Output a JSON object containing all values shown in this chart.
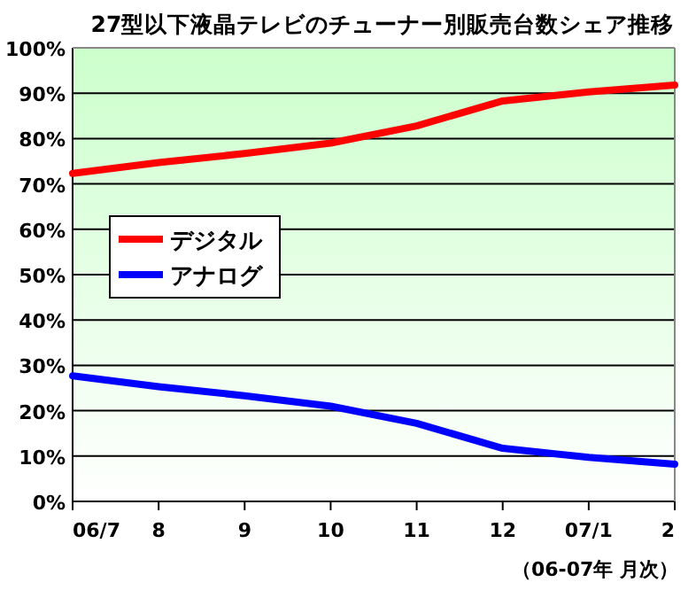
{
  "chart_data": {
    "type": "line",
    "title": "27型以下液晶テレビのチューナー別販売台数シェア推移",
    "categories": [
      "06/7",
      "8",
      "9",
      "10",
      "11",
      "12",
      "07/1",
      "2"
    ],
    "series": [
      {
        "name": "デジタル",
        "color": "#ff0000",
        "values": [
          72.3,
          74.7,
          76.7,
          79.0,
          82.8,
          88.3,
          90.3,
          91.8
        ]
      },
      {
        "name": "アナログ",
        "color": "#0000ff",
        "values": [
          27.7,
          25.3,
          23.3,
          21.0,
          17.2,
          11.7,
          9.7,
          8.2
        ]
      }
    ],
    "ylim": [
      0,
      100
    ],
    "yticks": [
      {
        "value": 0,
        "label": "0%"
      },
      {
        "value": 10,
        "label": "10%"
      },
      {
        "value": 20,
        "label": "20%"
      },
      {
        "value": 30,
        "label": "30%"
      },
      {
        "value": 40,
        "label": "40%"
      },
      {
        "value": 50,
        "label": "50%"
      },
      {
        "value": 60,
        "label": "60%"
      },
      {
        "value": 70,
        "label": "70%"
      },
      {
        "value": 80,
        "label": "80%"
      },
      {
        "value": 90,
        "label": "90%"
      },
      {
        "value": 100,
        "label": "100%"
      }
    ],
    "grid": "y",
    "legend": "left",
    "marker": "none",
    "line_style": "solid",
    "annotations": [
      "（06-07年 月次）"
    ]
  }
}
